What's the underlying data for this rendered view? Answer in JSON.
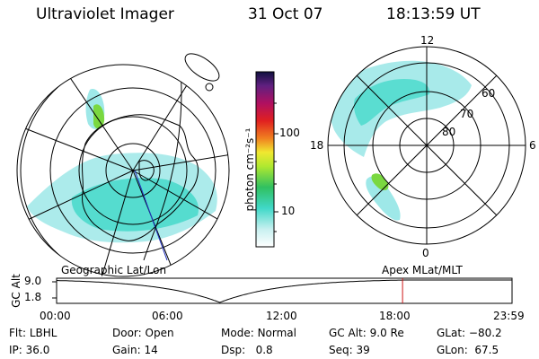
{
  "header": {
    "instrument": "Ultraviolet Imager",
    "date": "31 Oct 07",
    "time": "18:13:59 UT"
  },
  "colorbar": {
    "label": "photon cm⁻²s⁻¹",
    "ticks": [
      "100",
      "10"
    ]
  },
  "left_panel": {
    "caption": "Geographic Lat/Lon"
  },
  "right_panel": {
    "caption": "Apex  MLat/MLT",
    "lat_labels": [
      "60",
      "70",
      "80"
    ],
    "mlt_labels": {
      "top": "12",
      "left": "18",
      "right": "6",
      "bottom": "0"
    }
  },
  "altitude_plot": {
    "ylabel": "GC Alt",
    "y_ticks": [
      "9.0",
      "1.8"
    ],
    "x_ticks": [
      "00:00",
      "06:00",
      "12:00",
      "18:00",
      "23:59"
    ],
    "current_time_hours": 18.23
  },
  "info": {
    "flt_label": "Flt:",
    "flt_value": "LBHL",
    "ip_label": "IP:",
    "ip_value": "36.0",
    "door_label": "Door:",
    "door_value": "Open",
    "gain_label": "Gain:",
    "gain_value": "14",
    "mode_label": "Mode:",
    "mode_value": "Normal",
    "dsp_label": "Dsp:",
    "dsp_value": "0.8",
    "gcalt_label": "GC Alt:",
    "gcalt_value": "9.0 Re",
    "seq_label": "Seq:",
    "seq_value": "39",
    "glat_label": "GLat:",
    "glat_value": "−80.2",
    "glon_label": "GLon:",
    "glon_value": "67.5"
  },
  "colors": {
    "aurora_low": "#9ee8e8",
    "aurora_mid": "#40d8c8",
    "aurora_high": "#7ad840",
    "marker": "#d01818"
  }
}
